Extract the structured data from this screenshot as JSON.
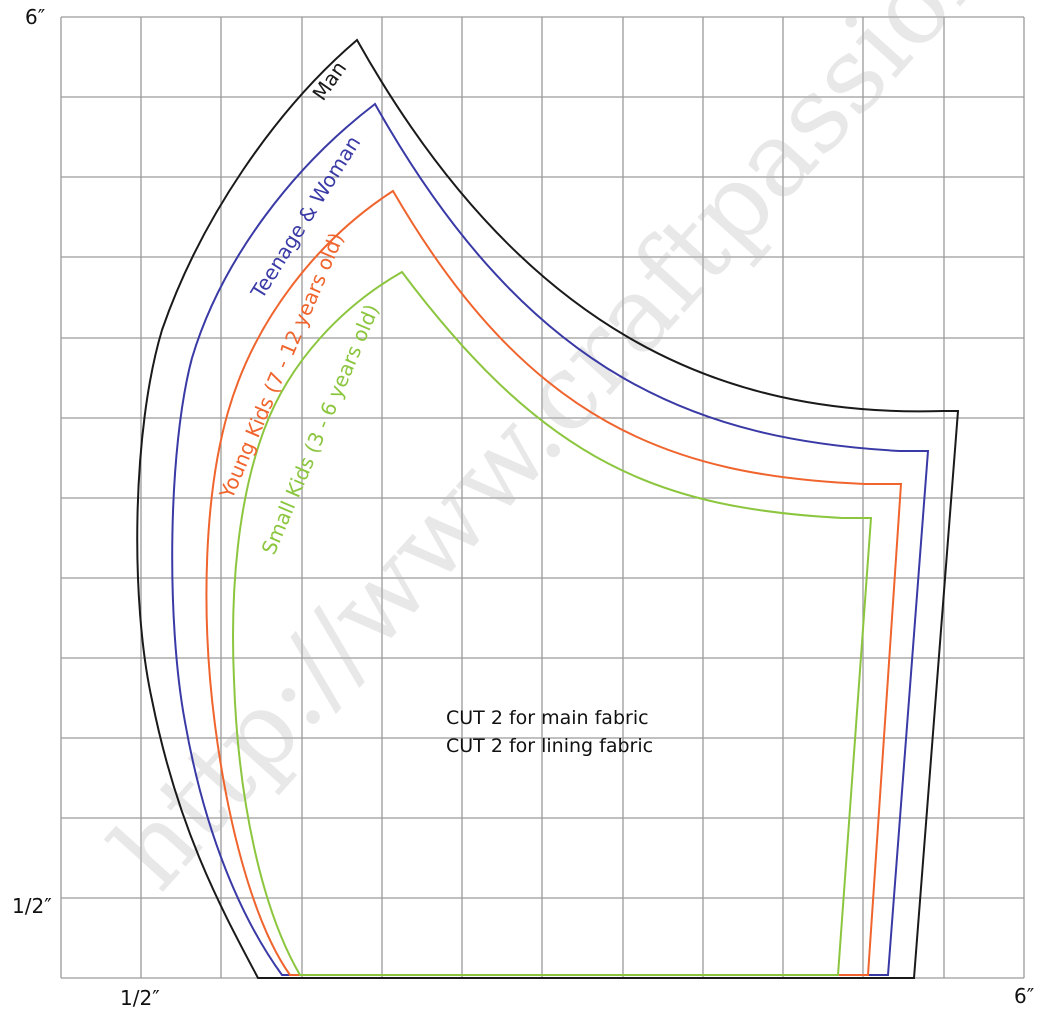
{
  "axis": {
    "y_top": "6″",
    "y_bottom": "1/2″",
    "x_left": "1/2″",
    "x_right": "6″"
  },
  "sizes": [
    {
      "label": "Man",
      "color": "#1a1a1a"
    },
    {
      "label": "Teenage & Woman",
      "color": "#3a3aa6"
    },
    {
      "label": "Young Kids (7 - 12 years old)",
      "color": "#f0642d"
    },
    {
      "label": "Small Kids (3 - 6 years old)",
      "color": "#8cc63f"
    }
  ],
  "instructions": {
    "line1": "CUT 2 for main fabric",
    "line2": "CUT 2 for lining fabric"
  },
  "watermark": "http://www.craftpassion.com",
  "grid_color": "#9a9a9a"
}
